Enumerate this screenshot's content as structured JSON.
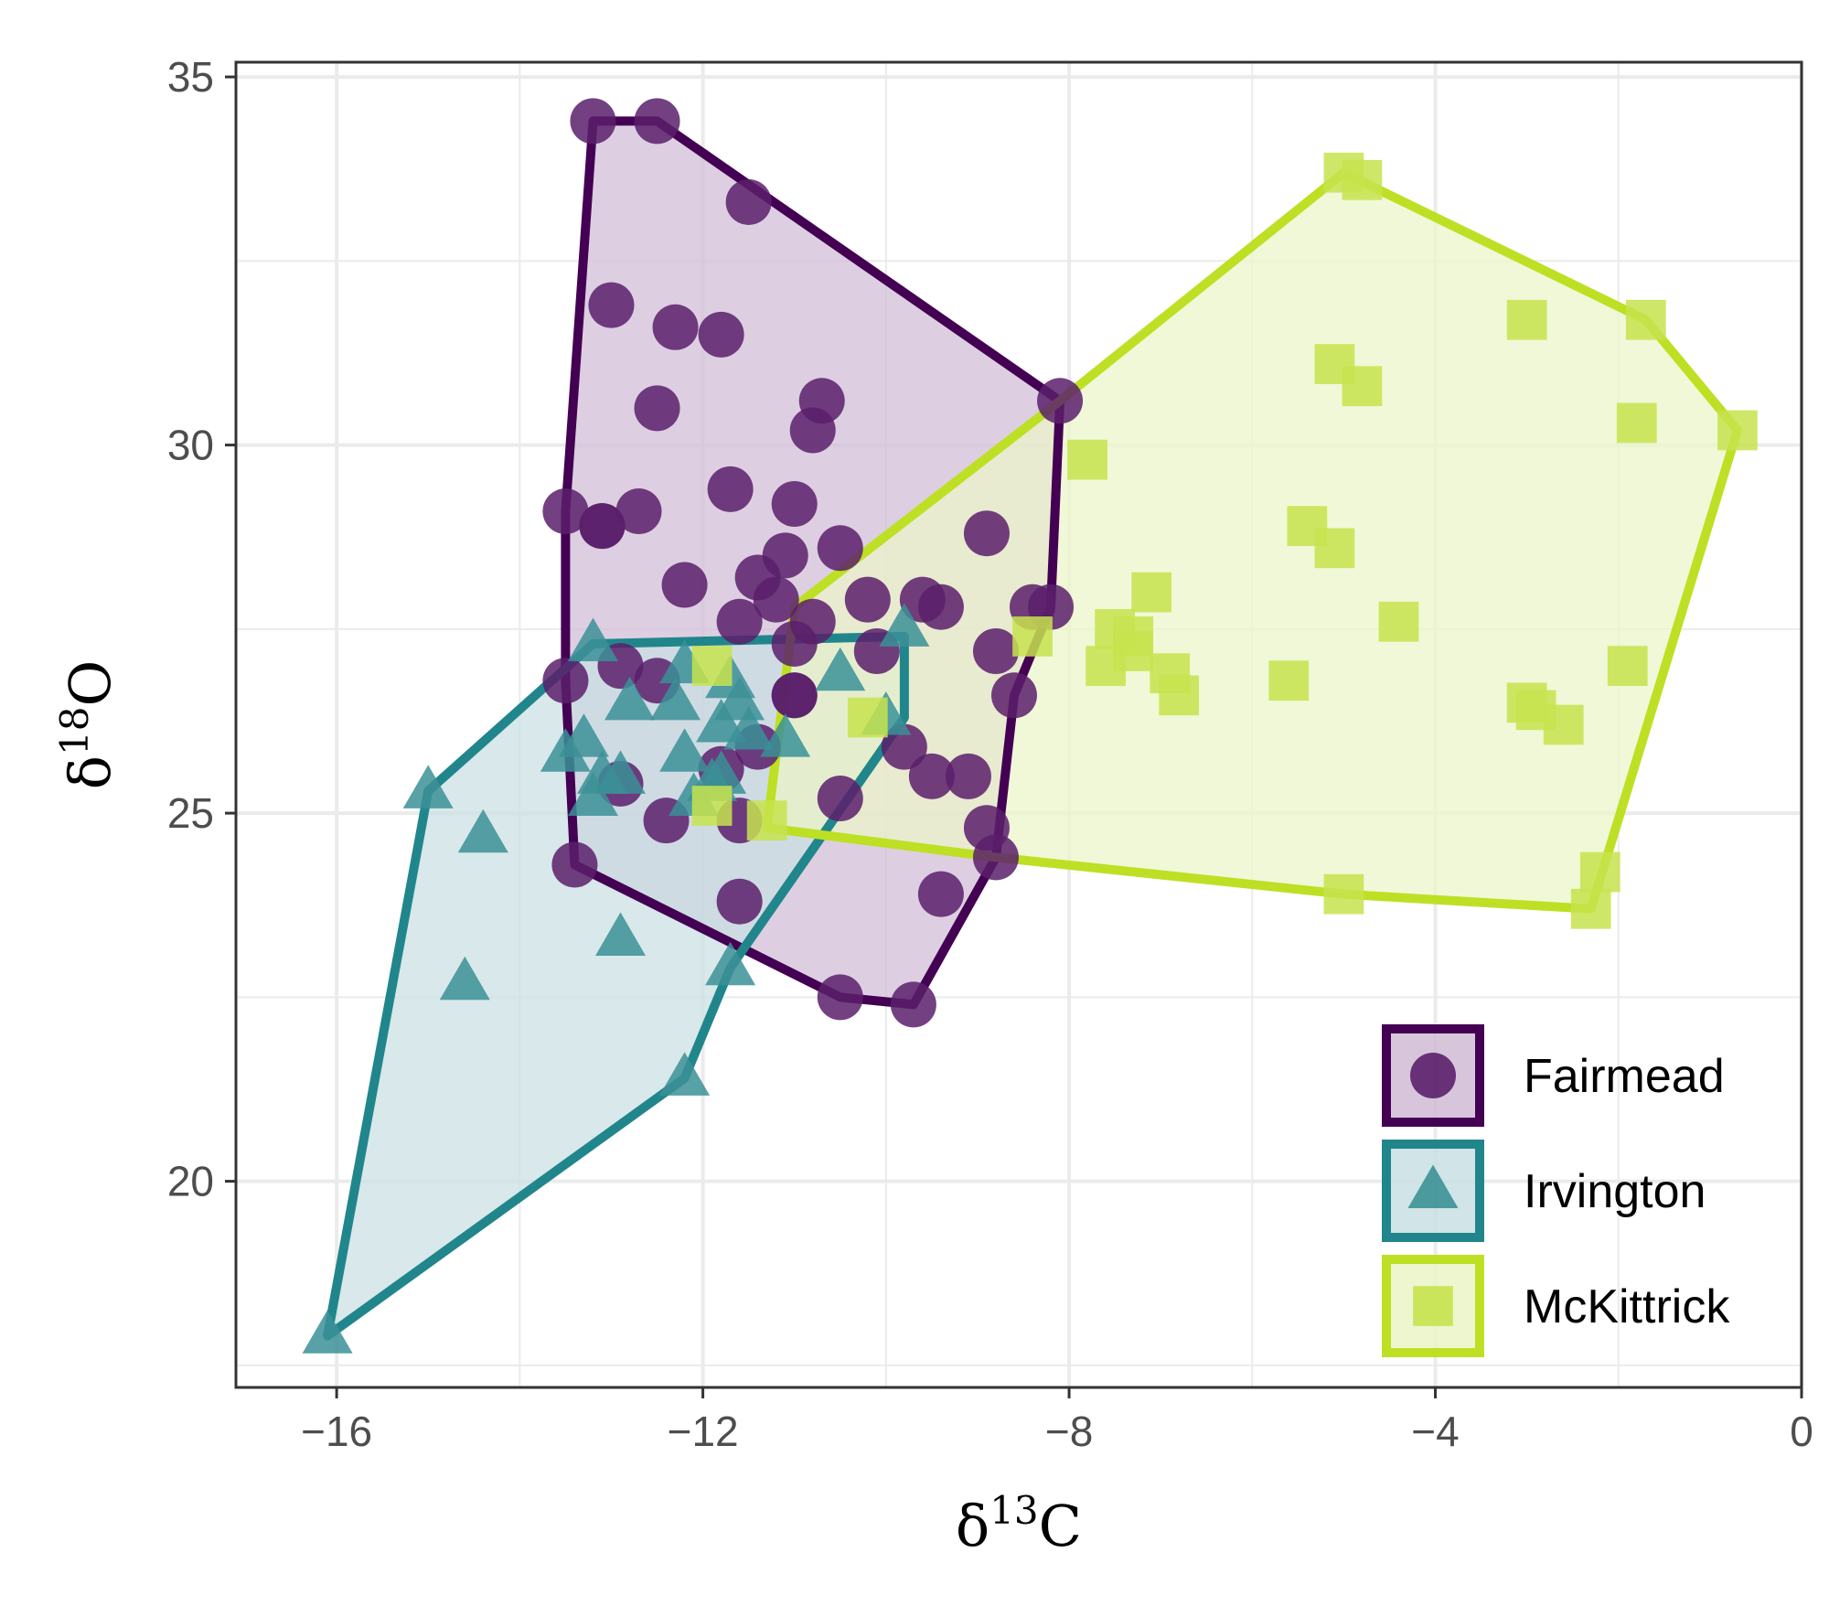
{
  "chart_data": {
    "type": "scatter",
    "xlabel": {
      "prefix": "δ",
      "superscript": "13",
      "suffix": "C"
    },
    "ylabel": {
      "prefix": "δ",
      "superscript": "18",
      "suffix": "O"
    },
    "xlim": [
      -17.1,
      0
    ],
    "ylim": [
      17.2,
      35.2
    ],
    "x_ticks": [
      -16,
      -12,
      -8,
      -4,
      0
    ],
    "x_tick_labels": [
      "−16",
      "−12",
      "−8",
      "−4",
      "0"
    ],
    "y_ticks": [
      20,
      25,
      30,
      35
    ],
    "y_tick_labels": [
      "20",
      "25",
      "30",
      "35"
    ],
    "grid": true,
    "legend_position": "bottom-right",
    "series": [
      {
        "name": "Fairmead",
        "marker": "circle",
        "color": "#440154",
        "point_color": "#5b1f6b",
        "fill": "#d0bcd5",
        "points": [
          [
            -13.2,
            34.4
          ],
          [
            -12.5,
            34.4
          ],
          [
            -11.5,
            33.3
          ],
          [
            -13.0,
            31.9
          ],
          [
            -12.3,
            31.6
          ],
          [
            -11.8,
            31.5
          ],
          [
            -12.5,
            30.5
          ],
          [
            -10.7,
            30.6
          ],
          [
            -10.8,
            30.2
          ],
          [
            -11.7,
            29.4
          ],
          [
            -13.5,
            29.1
          ],
          [
            -13.1,
            28.9
          ],
          [
            -13.1,
            28.9
          ],
          [
            -12.7,
            29.1
          ],
          [
            -11.0,
            29.2
          ],
          [
            -10.5,
            28.6
          ],
          [
            -11.1,
            28.5
          ],
          [
            -12.2,
            28.1
          ],
          [
            -11.4,
            28.2
          ],
          [
            -11.2,
            27.9
          ],
          [
            -11.6,
            27.6
          ],
          [
            -10.8,
            27.6
          ],
          [
            -11.0,
            27.3
          ],
          [
            -10.2,
            27.9
          ],
          [
            -9.6,
            27.9
          ],
          [
            -9.4,
            27.8
          ],
          [
            -8.9,
            28.8
          ],
          [
            -10.1,
            27.2
          ],
          [
            -8.8,
            27.2
          ],
          [
            -8.6,
            26.6
          ],
          [
            -8.4,
            27.8
          ],
          [
            -8.2,
            27.8
          ],
          [
            -8.1,
            30.6
          ],
          [
            -13.5,
            26.8
          ],
          [
            -12.9,
            27.0
          ],
          [
            -12.5,
            26.8
          ],
          [
            -11.0,
            26.6
          ],
          [
            -11.0,
            26.6
          ],
          [
            -11.4,
            25.9
          ],
          [
            -11.8,
            25.6
          ],
          [
            -11.6,
            24.9
          ],
          [
            -12.9,
            25.4
          ],
          [
            -12.4,
            24.9
          ],
          [
            -10.5,
            25.2
          ],
          [
            -9.8,
            25.9
          ],
          [
            -9.5,
            25.5
          ],
          [
            -9.1,
            25.5
          ],
          [
            -8.9,
            24.8
          ],
          [
            -8.8,
            24.4
          ],
          [
            -9.4,
            23.9
          ],
          [
            -11.6,
            23.8
          ],
          [
            -10.5,
            22.5
          ],
          [
            -9.7,
            22.4
          ],
          [
            -13.4,
            24.3
          ]
        ],
        "hull": [
          [
            -12.5,
            34.4
          ],
          [
            -8.1,
            30.6
          ],
          [
            -8.2,
            27.8
          ],
          [
            -8.6,
            26.6
          ],
          [
            -8.8,
            24.4
          ],
          [
            -9.7,
            22.4
          ],
          [
            -10.5,
            22.5
          ],
          [
            -13.4,
            24.3
          ],
          [
            -13.5,
            26.8
          ],
          [
            -13.5,
            29.1
          ],
          [
            -13.2,
            34.4
          ]
        ]
      },
      {
        "name": "Irvington",
        "marker": "triangle",
        "color": "#21868b",
        "point_color": "#3b9196",
        "fill": "#c9dfe3",
        "points": [
          [
            -13.2,
            27.3
          ],
          [
            -12.2,
            27.0
          ],
          [
            -12.3,
            26.5
          ],
          [
            -11.8,
            26.2
          ],
          [
            -11.6,
            26.5
          ],
          [
            -11.5,
            26.1
          ],
          [
            -12.8,
            26.5
          ],
          [
            -13.3,
            26.0
          ],
          [
            -13.5,
            25.8
          ],
          [
            -12.9,
            25.5
          ],
          [
            -13.2,
            25.2
          ],
          [
            -13.1,
            25.5
          ],
          [
            -12.2,
            25.8
          ],
          [
            -11.9,
            25.4
          ],
          [
            -12.1,
            25.2
          ],
          [
            -11.8,
            25.5
          ],
          [
            -11.1,
            26.0
          ],
          [
            -10.5,
            26.9
          ],
          [
            -9.8,
            27.5
          ],
          [
            -10.0,
            26.3
          ],
          [
            -11.7,
            26.8
          ],
          [
            -15.0,
            25.3
          ],
          [
            -14.4,
            24.7
          ],
          [
            -12.9,
            23.3
          ],
          [
            -14.6,
            22.7
          ],
          [
            -11.7,
            22.9
          ],
          [
            -12.2,
            21.4
          ],
          [
            -16.1,
            17.9
          ]
        ],
        "hull": [
          [
            -16.1,
            17.9
          ],
          [
            -15.0,
            25.3
          ],
          [
            -13.2,
            27.3
          ],
          [
            -9.8,
            27.4
          ],
          [
            -9.8,
            26.3
          ],
          [
            -11.7,
            22.9
          ],
          [
            -12.2,
            21.4
          ]
        ]
      },
      {
        "name": "McKittrick",
        "marker": "square",
        "color": "#bde024",
        "point_color": "#c7e34e",
        "fill": "#ebf5c8",
        "points": [
          [
            -5.0,
            33.7
          ],
          [
            -4.8,
            33.6
          ],
          [
            -3.0,
            31.7
          ],
          [
            -1.7,
            31.7
          ],
          [
            -5.1,
            31.1
          ],
          [
            -4.8,
            30.8
          ],
          [
            -1.8,
            30.3
          ],
          [
            -0.7,
            30.2
          ],
          [
            -7.8,
            29.8
          ],
          [
            -5.4,
            28.9
          ],
          [
            -5.1,
            28.6
          ],
          [
            -7.5,
            27.5
          ],
          [
            -7.3,
            27.4
          ],
          [
            -7.3,
            27.2
          ],
          [
            -7.1,
            28.0
          ],
          [
            -4.4,
            27.6
          ],
          [
            -8.4,
            27.4
          ],
          [
            -7.6,
            27.0
          ],
          [
            -6.9,
            26.9
          ],
          [
            -6.8,
            26.6
          ],
          [
            -5.6,
            26.8
          ],
          [
            -1.9,
            27.0
          ],
          [
            -3.0,
            26.5
          ],
          [
            -2.9,
            26.4
          ],
          [
            -2.6,
            26.2
          ],
          [
            -11.9,
            27.0
          ],
          [
            -10.2,
            26.3
          ],
          [
            -11.9,
            25.1
          ],
          [
            -11.3,
            24.9
          ],
          [
            -5.0,
            23.9
          ],
          [
            -2.2,
            24.2
          ],
          [
            -2.3,
            23.7
          ]
        ],
        "hull": [
          [
            -5.0,
            33.7
          ],
          [
            -1.7,
            31.7
          ],
          [
            -0.7,
            30.2
          ],
          [
            -2.3,
            23.7
          ],
          [
            -5.0,
            23.9
          ],
          [
            -8.8,
            24.4
          ],
          [
            -11.3,
            24.8
          ],
          [
            -11.0,
            27.8
          ],
          [
            -8.1,
            30.6
          ]
        ]
      }
    ]
  }
}
